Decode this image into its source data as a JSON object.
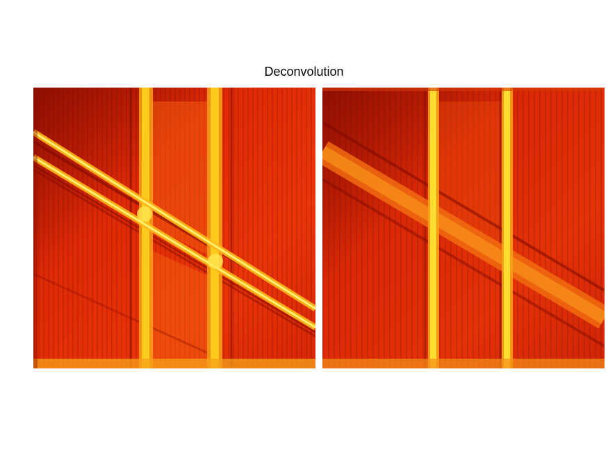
{
  "figure": {
    "title": "Deconvolution"
  },
  "panels": [
    {
      "id": "left",
      "colormap": "hot"
    },
    {
      "id": "right",
      "colormap": "hot"
    }
  ],
  "colors": {
    "background": "#ffffff",
    "base": "#e62a0a",
    "dark": "#a50f00",
    "bright": "#ffd21e",
    "highlight": "#fff06e"
  }
}
